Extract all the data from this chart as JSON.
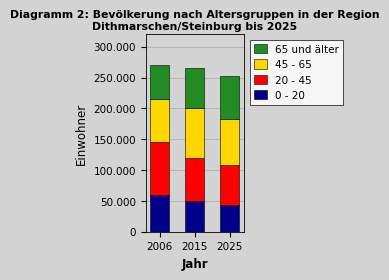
{
  "title": "Diagramm 2: Bevölkerung nach Altersgruppen in der Region\nDithmarschen/Steinburg bis 2025",
  "xlabel": "Jahr",
  "ylabel": "Einwohner",
  "years": [
    "2006",
    "2015",
    "2025"
  ],
  "segments": {
    "0 - 20": [
      60000,
      50000,
      43000
    ],
    "20 - 45": [
      85000,
      70000,
      65000
    ],
    "45 - 65": [
      70000,
      80000,
      75000
    ],
    "65 und älter": [
      55000,
      65000,
      70000
    ]
  },
  "colors": {
    "0 - 20": "#00008B",
    "20 - 45": "#FF0000",
    "45 - 65": "#FFD700",
    "65 und älter": "#228B22"
  },
  "ylim": [
    0,
    320000
  ],
  "yticks": [
    0,
    50000,
    100000,
    150000,
    200000,
    250000,
    300000
  ],
  "ytick_labels": [
    "0",
    "50.000",
    "100.000",
    "150.000",
    "200.000",
    "250.000",
    "300.000"
  ],
  "bar_width": 0.55,
  "background_color": "#D3D3D3",
  "fig_color": "#D3D3D3",
  "title_fontsize": 7.8,
  "axis_label_fontsize": 8.5,
  "tick_fontsize": 7.5,
  "legend_fontsize": 7.5
}
